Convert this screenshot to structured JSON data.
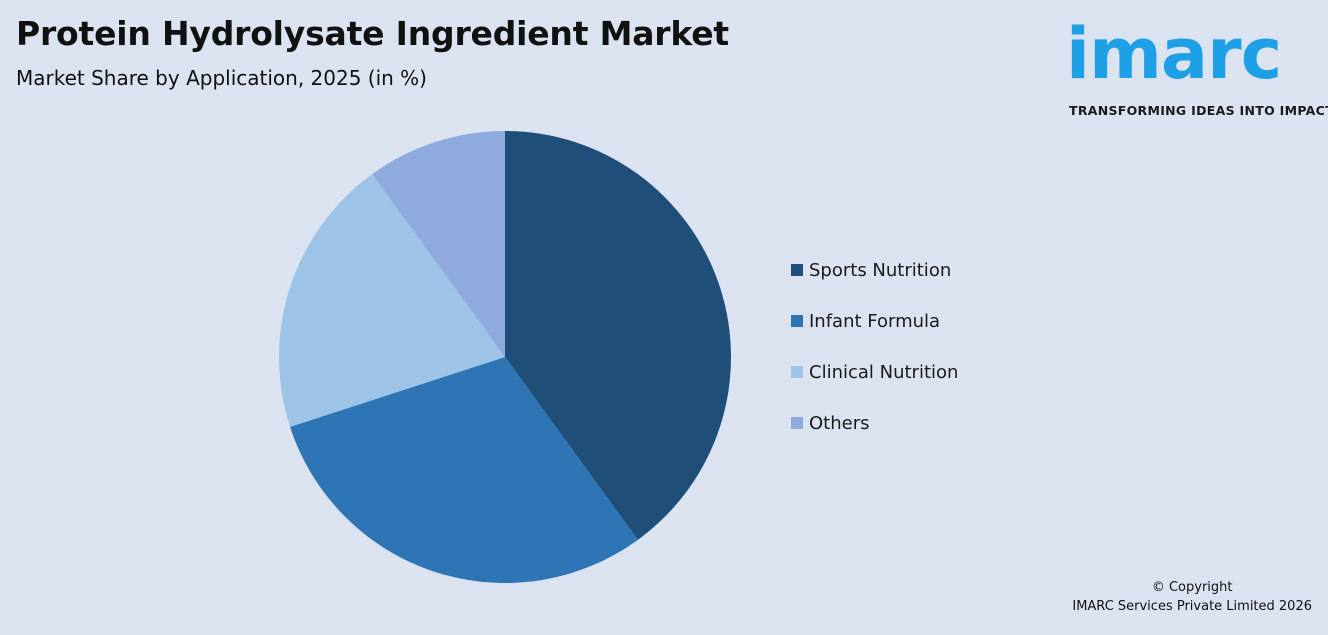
{
  "header": {
    "title": "Protein Hydrolysate Ingredient Market",
    "subtitle": "Market Share by Application, 2025 (in %)"
  },
  "brand": {
    "logo_text": "imarc",
    "tagline": "TRANSFORMING IDEAS INTO IMPACT",
    "color": "#1ea0e6"
  },
  "chart_data": {
    "type": "pie",
    "title": "Protein Hydrolysate Ingredient Market",
    "subtitle": "Market Share by Application, 2025 (in %)",
    "categories": [
      "Sports Nutrition",
      "Infant Formula",
      "Clinical Nutrition",
      "Others"
    ],
    "values": [
      40,
      30,
      20,
      10
    ],
    "colors": [
      "#1f4e79",
      "#2e75b6",
      "#9dc3e6",
      "#8faadc"
    ],
    "legend_position": "right",
    "start_angle_deg": 0,
    "direction": "clockwise"
  },
  "footer": {
    "copyright_line1": "© Copyright",
    "copyright_line2": "IMARC Services Private Limited 2026"
  }
}
